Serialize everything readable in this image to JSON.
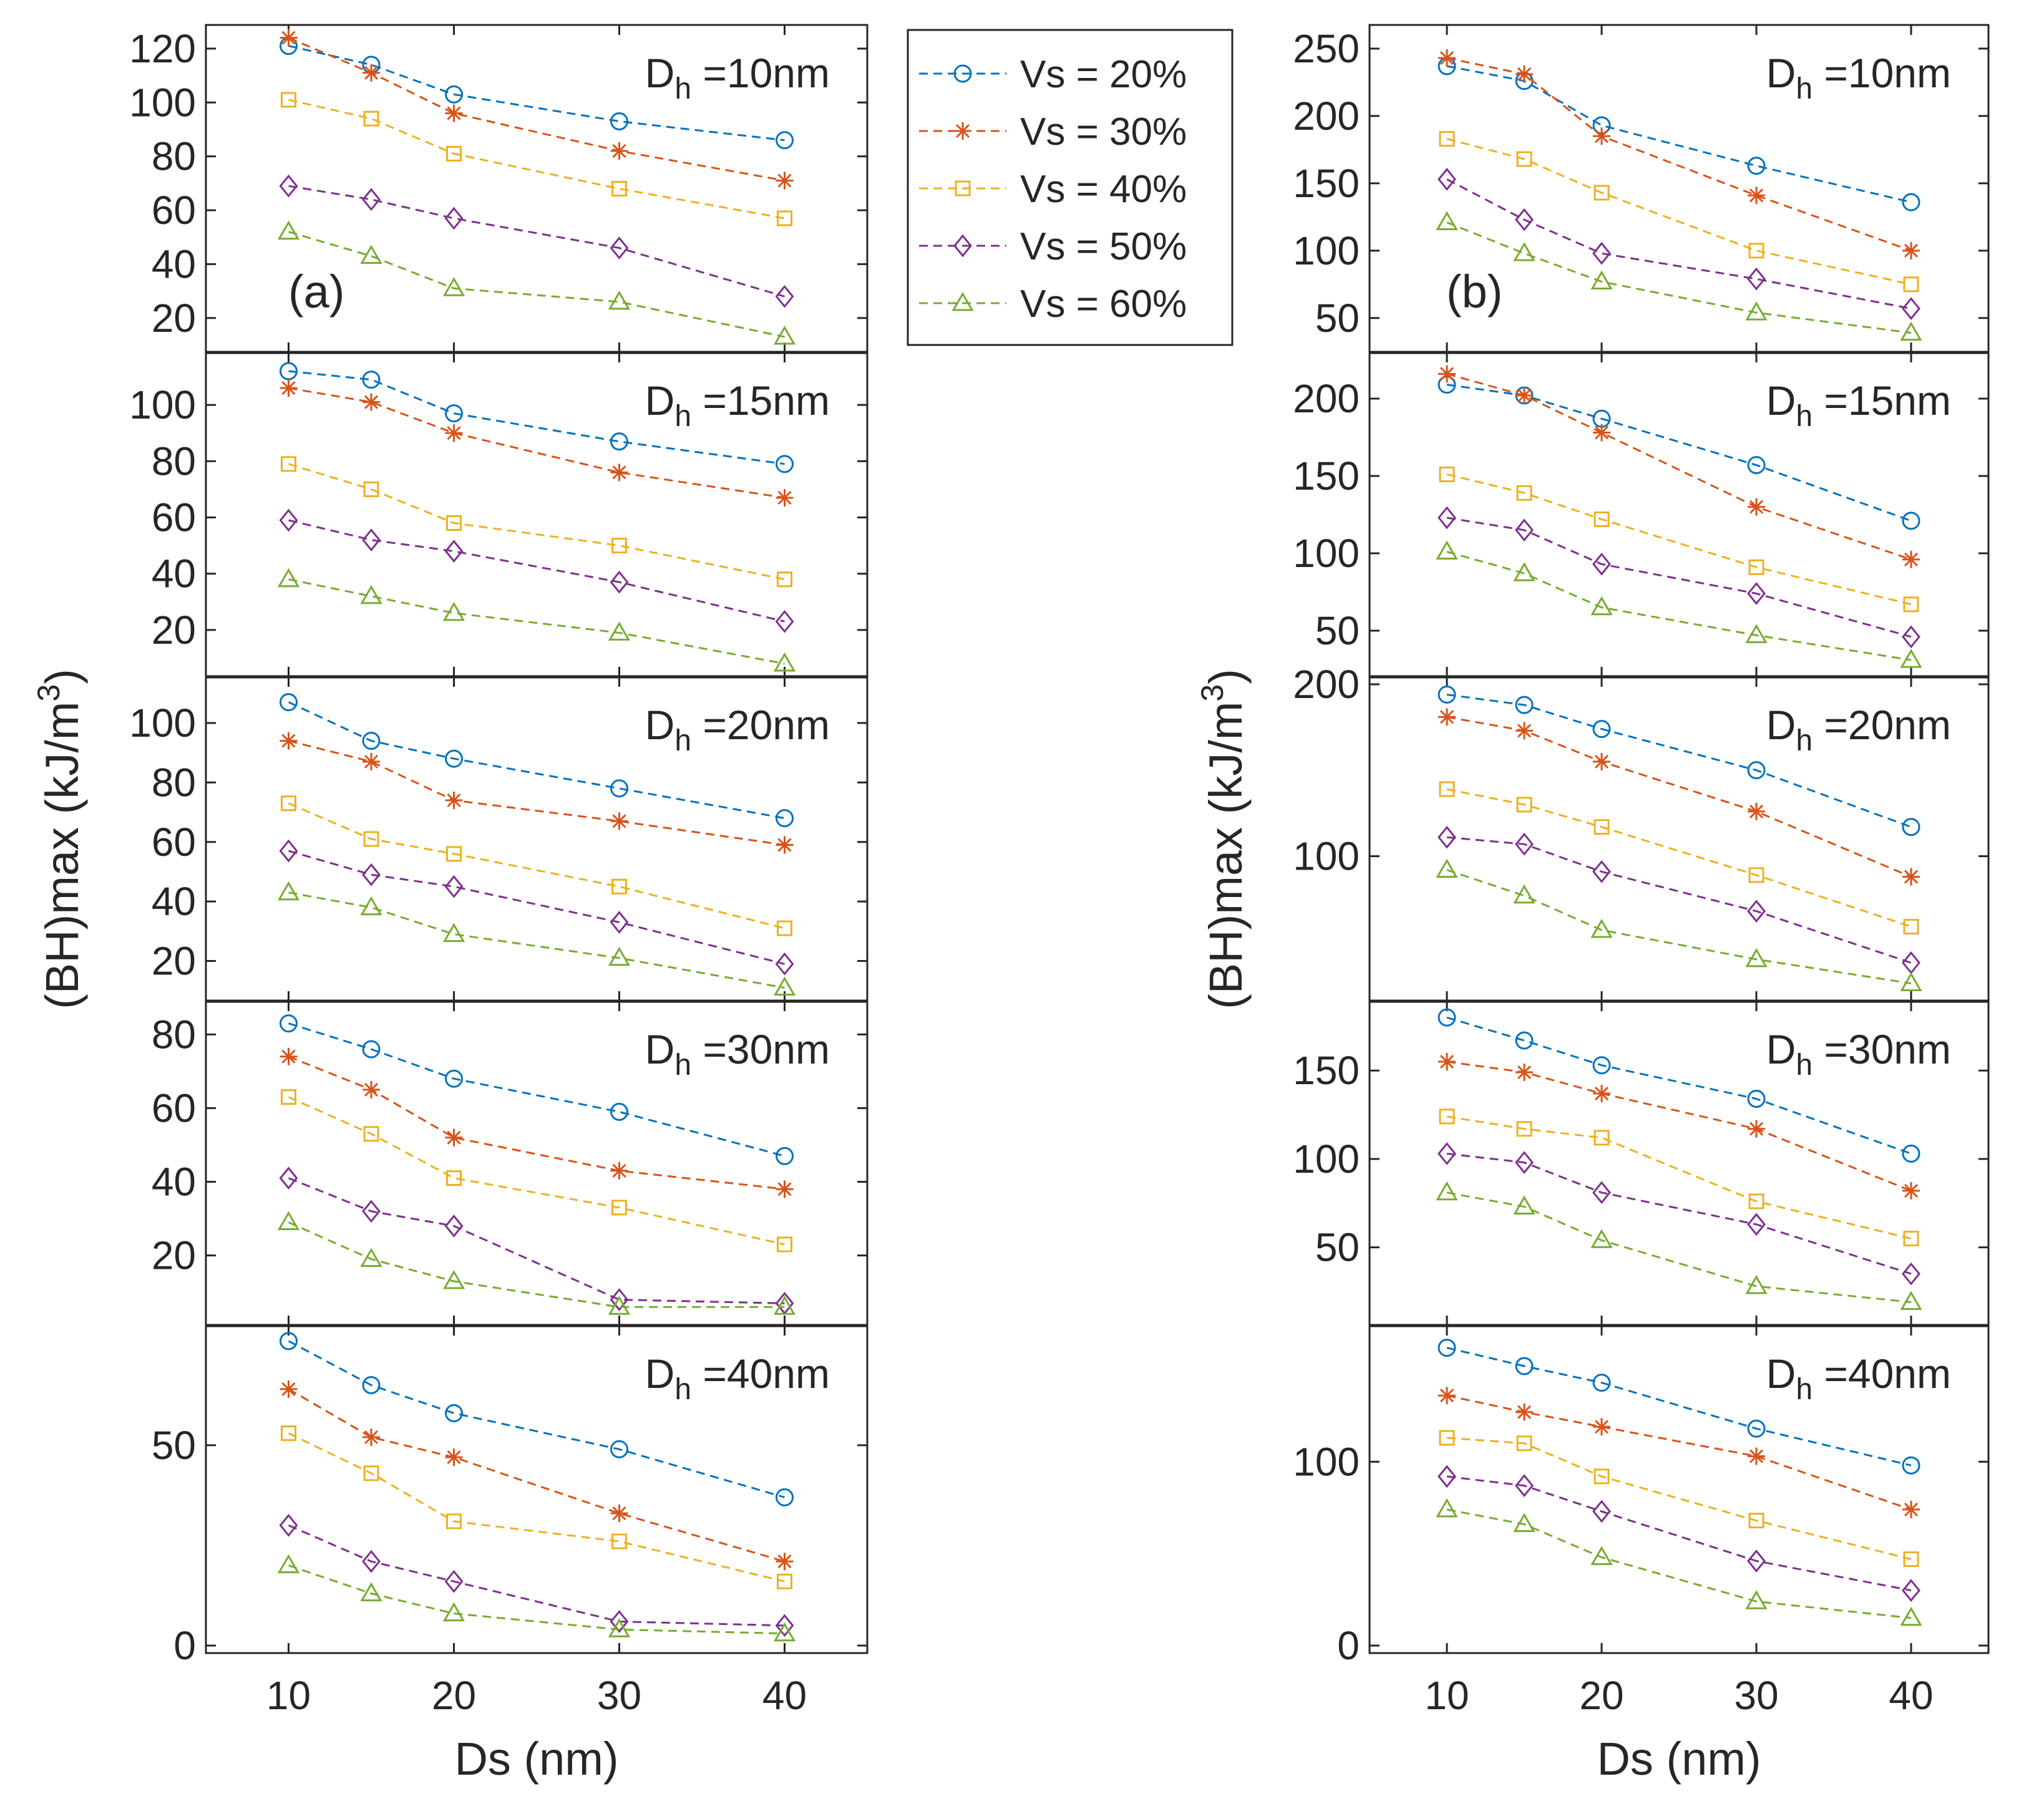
{
  "figure": {
    "series_names": [
      "Vs = 20%",
      "Vs = 30%",
      "Vs = 40%",
      "Vs = 50%",
      "Vs = 60%"
    ],
    "series_colors": [
      "#0072BD",
      "#D95319",
      "#EDB120",
      "#7E2F8E",
      "#77AC30"
    ],
    "series_markers": [
      "circle",
      "asterisk",
      "square",
      "diamond",
      "triangle"
    ]
  },
  "chart_data": [
    {
      "type": "line",
      "panel": "(a)",
      "x": [
        10,
        15,
        20,
        30,
        40
      ],
      "xticks": [
        10,
        20,
        30,
        40
      ],
      "xlim": [
        5,
        45
      ],
      "xlabel": "Ds (nm)",
      "ylabel_parts": [
        "(BH)max (kJ/m",
        "3",
        ")"
      ],
      "subplots": [
        {
          "label_main": "D",
          "label_sub": "h",
          "label_rest": " =10nm",
          "ylim": [
            10,
            126
          ],
          "yticks": [
            20,
            40,
            60,
            80,
            100,
            120
          ],
          "series": [
            {
              "name": "Vs = 20%",
              "values": [
                121,
                114,
                103,
                93,
                86
              ]
            },
            {
              "name": "Vs = 30%",
              "values": [
                124,
                111,
                96,
                82,
                71
              ]
            },
            {
              "name": "Vs = 40%",
              "values": [
                101,
                94,
                81,
                68,
                57
              ]
            },
            {
              "name": "Vs = 50%",
              "values": [
                69,
                64,
                57,
                46,
                28
              ]
            },
            {
              "name": "Vs = 60%",
              "values": [
                52,
                43,
                31,
                26,
                13
              ]
            }
          ]
        },
        {
          "label_main": "D",
          "label_sub": "h",
          "label_rest": " =15nm",
          "ylim": [
            6,
            116
          ],
          "yticks": [
            20,
            40,
            60,
            80,
            100
          ],
          "series": [
            {
              "name": "Vs = 20%",
              "values": [
                112,
                109,
                97,
                87,
                79
              ]
            },
            {
              "name": "Vs = 30%",
              "values": [
                106,
                101,
                90,
                76,
                67
              ]
            },
            {
              "name": "Vs = 40%",
              "values": [
                79,
                70,
                58,
                50,
                38
              ]
            },
            {
              "name": "Vs = 50%",
              "values": [
                59,
                52,
                48,
                37,
                23
              ]
            },
            {
              "name": "Vs = 60%",
              "values": [
                38,
                32,
                26,
                19,
                8
              ]
            }
          ]
        },
        {
          "label_main": "D",
          "label_sub": "h",
          "label_rest": " =20nm",
          "ylim": [
            9,
            113
          ],
          "yticks": [
            20,
            40,
            60,
            80,
            100
          ],
          "series": [
            {
              "name": "Vs = 20%",
              "values": [
                107,
                94,
                88,
                78,
                68
              ]
            },
            {
              "name": "Vs = 30%",
              "values": [
                94,
                87,
                74,
                67,
                59
              ]
            },
            {
              "name": "Vs = 40%",
              "values": [
                73,
                61,
                56,
                45,
                31
              ]
            },
            {
              "name": "Vs = 50%",
              "values": [
                57,
                49,
                45,
                33,
                19
              ]
            },
            {
              "name": "Vs = 60%",
              "values": [
                43,
                38,
                29,
                21,
                11
              ]
            }
          ]
        },
        {
          "label_main": "D",
          "label_sub": "h",
          "label_rest": " =30nm",
          "ylim": [
            3,
            87
          ],
          "yticks": [
            20,
            40,
            60,
            80
          ],
          "series": [
            {
              "name": "Vs = 20%",
              "values": [
                83,
                76,
                68,
                59,
                47
              ]
            },
            {
              "name": "Vs = 30%",
              "values": [
                74,
                65,
                52,
                43,
                38
              ]
            },
            {
              "name": "Vs = 40%",
              "values": [
                63,
                53,
                41,
                33,
                23
              ]
            },
            {
              "name": "Vs = 50%",
              "values": [
                41,
                32,
                28,
                8,
                7
              ]
            },
            {
              "name": "Vs = 60%",
              "values": [
                29,
                19,
                13,
                6,
                6
              ]
            }
          ]
        },
        {
          "label_main": "D",
          "label_sub": "h",
          "label_rest": " =40nm",
          "ylim": [
            0,
            78
          ],
          "yticks": [
            0,
            50
          ],
          "series": [
            {
              "name": "Vs = 20%",
              "values": [
                76,
                65,
                58,
                49,
                37
              ]
            },
            {
              "name": "Vs = 30%",
              "values": [
                64,
                52,
                47,
                33,
                21
              ]
            },
            {
              "name": "Vs = 40%",
              "values": [
                53,
                43,
                31,
                26,
                16
              ]
            },
            {
              "name": "Vs = 50%",
              "values": [
                30,
                21,
                16,
                6,
                5
              ]
            },
            {
              "name": "Vs = 60%",
              "values": [
                20,
                13,
                8,
                4,
                3
              ]
            }
          ]
        }
      ]
    },
    {
      "type": "line",
      "panel": "(b)",
      "x": [
        10,
        15,
        20,
        30,
        40
      ],
      "xticks": [
        10,
        20,
        30,
        40
      ],
      "xlim": [
        5,
        45
      ],
      "xlabel": "Ds (nm)",
      "ylabel_parts": [
        "(BH)max (kJ/m",
        "3",
        ")"
      ],
      "subplots": [
        {
          "label_main": "D",
          "label_sub": "h",
          "label_rest": " =10nm",
          "ylim": [
            30,
            262
          ],
          "yticks": [
            50,
            100,
            150,
            200,
            250
          ],
          "series": [
            {
              "name": "Vs = 20%",
              "values": [
                237,
                226,
                193,
                163,
                136
              ]
            },
            {
              "name": "Vs = 30%",
              "values": [
                243,
                231,
                185,
                141,
                100
              ]
            },
            {
              "name": "Vs = 40%",
              "values": [
                183,
                168,
                143,
                100,
                75
              ]
            },
            {
              "name": "Vs = 50%",
              "values": [
                153,
                123,
                98,
                79,
                57
              ]
            },
            {
              "name": "Vs = 60%",
              "values": [
                121,
                98,
                77,
                54,
                39
              ]
            }
          ]
        },
        {
          "label_main": "D",
          "label_sub": "h",
          "label_rest": " =15nm",
          "ylim": [
            25,
            225
          ],
          "yticks": [
            50,
            100,
            150,
            200
          ],
          "series": [
            {
              "name": "Vs = 20%",
              "values": [
                209,
                202,
                187,
                157,
                121
              ]
            },
            {
              "name": "Vs = 30%",
              "values": [
                216,
                202,
                178,
                130,
                96
              ]
            },
            {
              "name": "Vs = 40%",
              "values": [
                151,
                139,
                122,
                91,
                67
              ]
            },
            {
              "name": "Vs = 50%",
              "values": [
                123,
                115,
                93,
                74,
                46
              ]
            },
            {
              "name": "Vs = 60%",
              "values": [
                101,
                87,
                65,
                47,
                31
              ]
            }
          ]
        },
        {
          "label_main": "D",
          "label_sub": "h",
          "label_rest": " =20nm",
          "ylim": [
            20,
            200
          ],
          "yticks": [
            100,
            200
          ],
          "series": [
            {
              "name": "Vs = 20%",
              "values": [
                194,
                188,
                174,
                150,
                117
              ]
            },
            {
              "name": "Vs = 30%",
              "values": [
                181,
                173,
                155,
                126,
                88
              ]
            },
            {
              "name": "Vs = 40%",
              "values": [
                139,
                130,
                117,
                89,
                59
              ]
            },
            {
              "name": "Vs = 50%",
              "values": [
                111,
                107,
                91,
                68,
                38
              ]
            },
            {
              "name": "Vs = 60%",
              "values": [
                92,
                77,
                57,
                40,
                26
              ]
            }
          ]
        },
        {
          "label_main": "D",
          "label_sub": "h",
          "label_rest": " =30nm",
          "ylim": [
            10,
            185
          ],
          "yticks": [
            50,
            100,
            150
          ],
          "series": [
            {
              "name": "Vs = 20%",
              "values": [
                180,
                167,
                153,
                134,
                103
              ]
            },
            {
              "name": "Vs = 30%",
              "values": [
                155,
                149,
                137,
                117,
                82
              ]
            },
            {
              "name": "Vs = 40%",
              "values": [
                124,
                117,
                112,
                76,
                55
              ]
            },
            {
              "name": "Vs = 50%",
              "values": [
                103,
                98,
                81,
                63,
                35
              ]
            },
            {
              "name": "Vs = 60%",
              "values": [
                81,
                73,
                54,
                28,
                19
              ]
            }
          ]
        },
        {
          "label_main": "D",
          "label_sub": "h",
          "label_rest": " =40nm",
          "ylim": [
            0,
            170
          ],
          "yticks": [
            0,
            100
          ],
          "series": [
            {
              "name": "Vs = 20%",
              "values": [
                162,
                152,
                143,
                118,
                98
              ]
            },
            {
              "name": "Vs = 30%",
              "values": [
                136,
                127,
                119,
                103,
                74
              ]
            },
            {
              "name": "Vs = 40%",
              "values": [
                113,
                110,
                92,
                68,
                47
              ]
            },
            {
              "name": "Vs = 50%",
              "values": [
                92,
                87,
                73,
                46,
                30
              ]
            },
            {
              "name": "Vs = 60%",
              "values": [
                74,
                66,
                48,
                24,
                15
              ]
            }
          ]
        }
      ]
    }
  ]
}
